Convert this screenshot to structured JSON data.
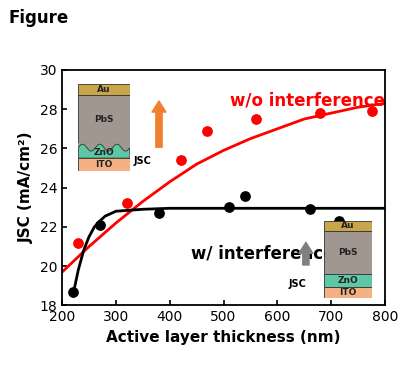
{
  "chart_data": {
    "type": "scatter",
    "title": "Figure",
    "x_label": "Active layer thickness (nm)",
    "y_label": "JSC (mA/cm²)",
    "xlim": [
      200,
      800
    ],
    "xticks": [
      200,
      300,
      400,
      500,
      600,
      700,
      800
    ],
    "ylim": [
      18,
      30
    ],
    "yticks": [
      18,
      20,
      22,
      24,
      26,
      28,
      30
    ],
    "series": [
      {
        "name": "w/o interference",
        "color": "#ff0000",
        "type": "scatter",
        "marker": "circle",
        "x": [
          230,
          320,
          420,
          470,
          560,
          680,
          775
        ],
        "values": [
          21.2,
          23.2,
          25.4,
          26.9,
          27.5,
          27.8,
          27.9
        ]
      },
      {
        "name": "w/ interference",
        "color": "#000000",
        "type": "scatter",
        "marker": "circle",
        "x": [
          220,
          270,
          380,
          510,
          540,
          660,
          715
        ],
        "values": [
          18.7,
          22.1,
          22.7,
          23.0,
          23.6,
          22.9,
          22.3
        ]
      }
    ],
    "fit_curves": [
      {
        "color": "#ff0000",
        "type": "line",
        "line_style": "solid",
        "x": [
          200,
          250,
          300,
          350,
          400,
          450,
          500,
          550,
          600,
          650,
          700,
          750,
          800
        ],
        "values": [
          19.7,
          21.0,
          22.2,
          23.3,
          24.3,
          25.2,
          25.9,
          26.5,
          27.0,
          27.5,
          27.8,
          28.1,
          28.3
        ]
      },
      {
        "color": "#000000",
        "type": "line",
        "line_style": "solid",
        "x": [
          220,
          230,
          240,
          250,
          260,
          270,
          280,
          300,
          350,
          400,
          500,
          600,
          700,
          800
        ],
        "values": [
          18.5,
          19.8,
          20.8,
          21.5,
          22.0,
          22.3,
          22.55,
          22.8,
          22.9,
          22.95,
          22.95,
          22.95,
          22.95,
          22.95
        ]
      }
    ],
    "insets": [
      {
        "layers": [
          "Au",
          "PbS",
          "ZnO",
          "ITO"
        ],
        "arrow_label": "JSC",
        "arrow_color": "#f08030",
        "wavy": true
      },
      {
        "layers": [
          "Au",
          "PbS",
          "ZnO",
          "ITO"
        ],
        "arrow_label": "JSC",
        "arrow_color": "#808080",
        "wavy": false
      }
    ]
  }
}
